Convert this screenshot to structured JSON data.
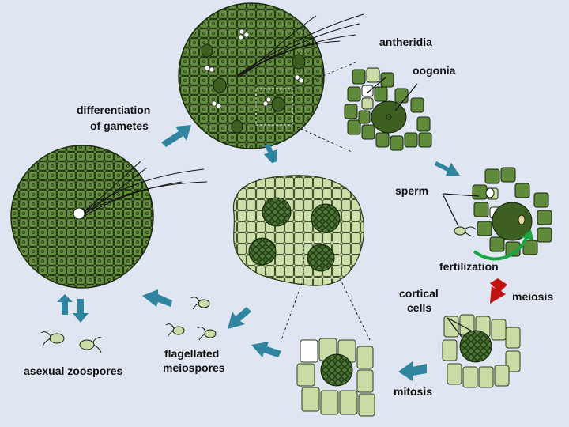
{
  "labels": {
    "antheridia": "antheridia",
    "oogonia": "oogonia",
    "differentiation_line1": "differentiation",
    "differentiation_line2": "of gametes",
    "sperm": "sperm",
    "fertilization": "fertilization",
    "meiosis": "meiosis",
    "cortical_line1": "cortical",
    "cortical_line2": "cells",
    "mitosis": "mitosis",
    "flagellated_line1": "flagellated",
    "flagellated_line2": "meiospores",
    "asexual_zoospores": "asexual zoospores"
  },
  "colors": {
    "background": "#dfe6f2",
    "thallus_dark": "#5e8a3a",
    "thallus_light": "#c9dca6",
    "oogonium": "#3d5f22",
    "arrow_blue": "#2f84a0",
    "arrow_red": "#c0130f",
    "arrow_green": "#1aa544"
  }
}
